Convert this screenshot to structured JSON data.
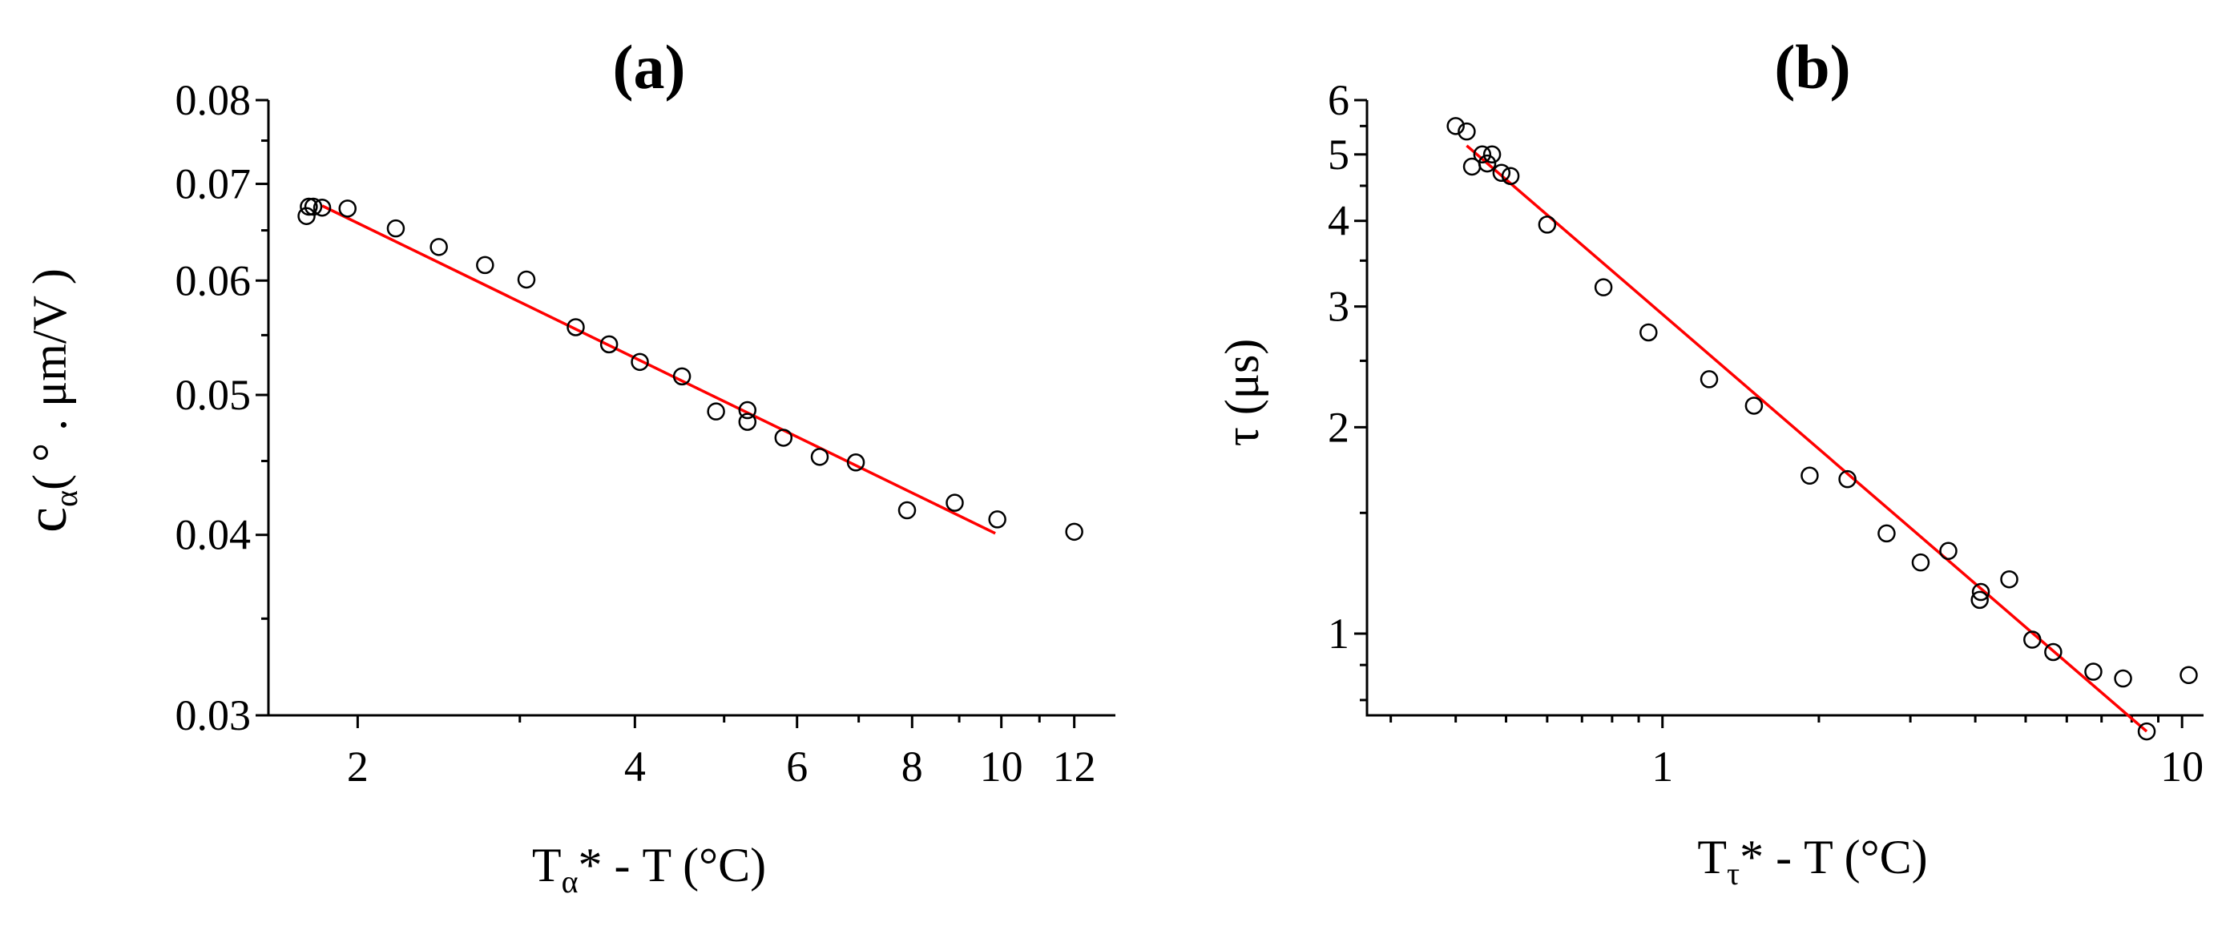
{
  "chart_data": [
    {
      "type": "scatter",
      "title": "(a)",
      "xlabel": "Tα* - T  (°C)",
      "ylabel": "cα (°. μm/V)",
      "xscale": "log",
      "yscale": "log",
      "xlim": [
        1.6,
        13.3
      ],
      "ylim": [
        0.03,
        0.08
      ],
      "xticks": [
        2,
        4,
        6,
        8,
        10,
        12
      ],
      "xtick_labels": [
        "2",
        "4",
        "6",
        "8",
        "10",
        "12"
      ],
      "yticks": [
        0.03,
        0.04,
        0.05,
        0.06,
        0.07,
        0.08
      ],
      "ytick_labels": [
        "0.03",
        "0.04",
        "0.05",
        "0.06",
        "0.07",
        "0.08"
      ],
      "grid": false,
      "series": [
        {
          "marker": "open-circle",
          "color": "#000000",
          "x": [
            1.76,
            1.77,
            1.79,
            1.83,
            1.95,
            2.2,
            2.45,
            2.75,
            3.05,
            3.45,
            3.75,
            4.05,
            4.5,
            4.9,
            5.3,
            5.3,
            5.8,
            6.35,
            6.95,
            7.9,
            8.9,
            9.9,
            12.0
          ],
          "y": [
            0.0665,
            0.0675,
            0.0675,
            0.0674,
            0.0673,
            0.0652,
            0.0633,
            0.0615,
            0.0601,
            0.0557,
            0.0542,
            0.0527,
            0.0515,
            0.0487,
            0.0488,
            0.0479,
            0.0467,
            0.0453,
            0.0449,
            0.0416,
            0.0421,
            0.041,
            0.0402
          ]
        },
        {
          "type": "line",
          "color": "#ff0000",
          "x": [
            1.83,
            9.85
          ],
          "y": [
            0.0676,
            0.0401
          ]
        }
      ]
    },
    {
      "type": "scatter",
      "title": "(b)",
      "xlabel": "Tτ* - T  (°C)",
      "ylabel": "τ  (μs)",
      "xscale": "log",
      "yscale": "log",
      "xlim": [
        0.27,
        11.0
      ],
      "ylim": [
        0.76,
        6.0
      ],
      "xticks": [
        1,
        10
      ],
      "xtick_labels": [
        "1",
        "10"
      ],
      "yticks": [
        1,
        2,
        3,
        4,
        5,
        6
      ],
      "ytick_labels": [
        "1",
        "2",
        "3",
        "4",
        "5",
        "6"
      ],
      "grid": false,
      "series": [
        {
          "marker": "open-circle",
          "color": "#000000",
          "x": [
            0.4,
            0.42,
            0.43,
            0.45,
            0.46,
            0.47,
            0.49,
            0.51,
            0.6,
            0.77,
            0.94,
            1.23,
            1.5,
            1.92,
            2.27,
            2.7,
            3.14,
            3.55,
            4.1,
            4.08,
            4.65,
            5.15,
            5.65,
            6.75,
            7.7,
            8.55,
            10.3
          ],
          "y": [
            5.5,
            5.4,
            4.8,
            5.0,
            4.85,
            5.0,
            4.7,
            4.65,
            3.95,
            3.2,
            2.75,
            2.35,
            2.15,
            1.7,
            1.68,
            1.4,
            1.27,
            1.32,
            1.15,
            1.12,
            1.2,
            0.98,
            0.94,
            0.88,
            0.86,
            0.72,
            0.87
          ]
        },
        {
          "type": "line",
          "color": "#ff0000",
          "x": [
            0.42,
            8.55
          ],
          "y": [
            5.15,
            0.72
          ]
        }
      ]
    }
  ]
}
